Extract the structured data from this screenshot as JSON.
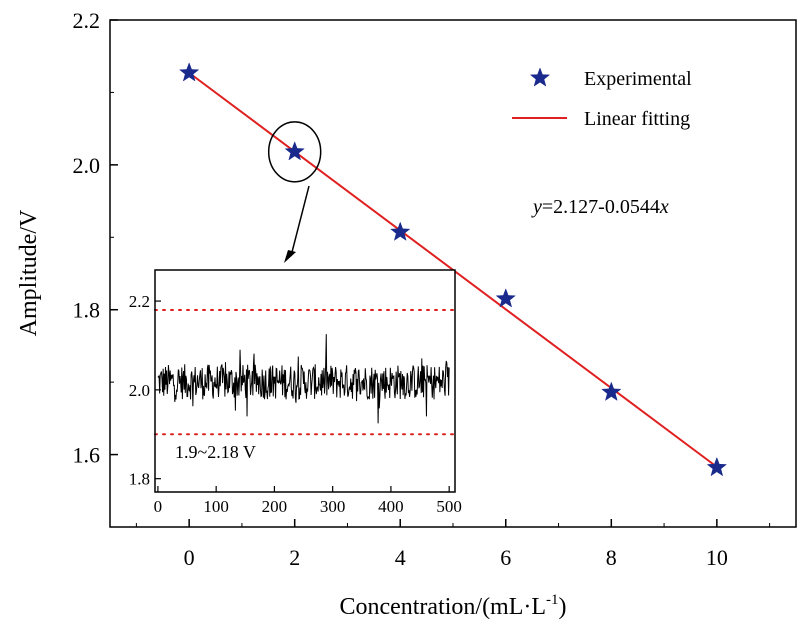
{
  "chart_data": [
    {
      "type": "scatter",
      "xlabel": "Concentration/(mL·L",
      "xlabel_sup": "-1",
      "xlabel_close": ")",
      "ylabel": "Amplitude/V",
      "xlim": [
        -1.5,
        11.5
      ],
      "ylim": [
        1.5,
        2.2
      ],
      "x_ticks": [
        0,
        2,
        4,
        6,
        8,
        10
      ],
      "x_tick_labels": [
        "0",
        "2",
        "4",
        "6",
        "8",
        "10"
      ],
      "y_ticks": [
        1.6,
        1.8,
        2.0,
        2.2
      ],
      "y_tick_labels": [
        "1.6",
        "1.8",
        "2.0",
        "2.2"
      ],
      "series": [
        {
          "name": "Experimental",
          "marker": "star",
          "color": "#1a2a8c",
          "x": [
            0,
            2,
            4,
            6,
            8,
            10
          ],
          "y": [
            2.127,
            2.018,
            1.907,
            1.815,
            1.686,
            1.582
          ]
        },
        {
          "name": "Linear fitting",
          "type": "line",
          "color": "#e02020",
          "x": [
            0,
            10
          ],
          "y": [
            2.127,
            1.583
          ]
        }
      ],
      "annotation": {
        "var_y": "y",
        "formula_mid": "=2.127-0.0544",
        "var_x": "x"
      },
      "legend_position": "top-right",
      "grid": false,
      "highlighted_point": {
        "x": 2,
        "y": 2.018
      }
    },
    {
      "type": "line",
      "role": "inset",
      "xlim": [
        -5,
        510
      ],
      "ylim": [
        1.77,
        2.27
      ],
      "x_ticks": [
        0,
        100,
        200,
        300,
        400,
        500
      ],
      "x_tick_labels": [
        "0",
        "100",
        "200",
        "300",
        "400",
        "500"
      ],
      "y_ticks": [
        1.8,
        2.0,
        2.2
      ],
      "y_tick_labels": [
        "1.8",
        "2.0",
        "2.2"
      ],
      "bounds": [
        1.9,
        2.18
      ],
      "bounds_color": "#e02020",
      "signal_center": 2.018,
      "signal_noise": 0.04,
      "signal_count": 500,
      "range_label": "1.9~2.18 V",
      "color": "#000000"
    }
  ]
}
